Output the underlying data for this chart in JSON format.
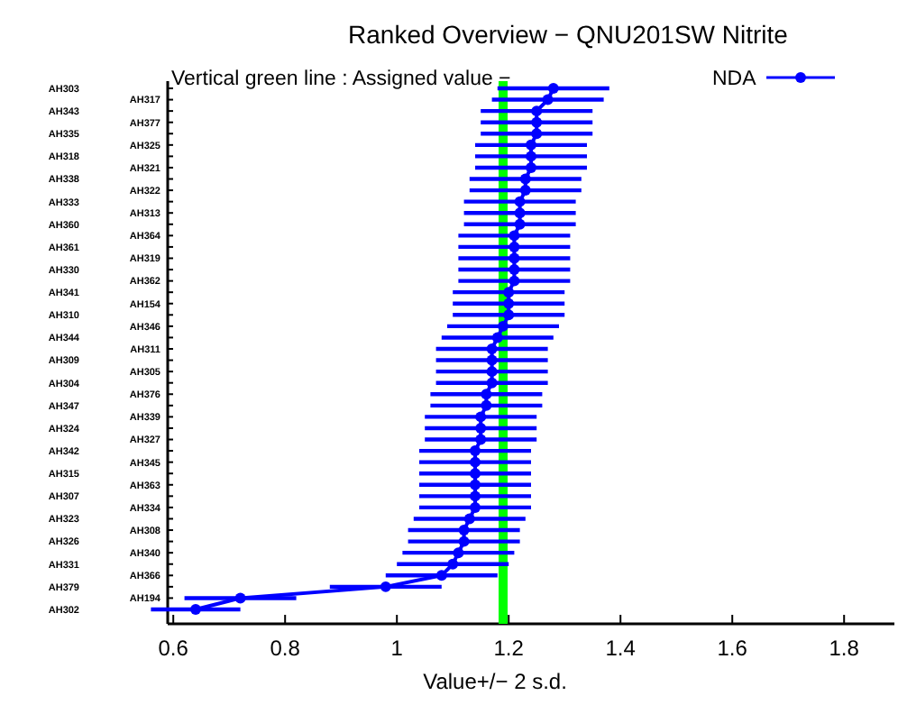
{
  "chart_data": {
    "type": "line",
    "orientation": "horizontal",
    "title": "Ranked Overview − QNU201SW  Nitrite",
    "xlabel": "Value+/− 2 s.d.",
    "annotations": [
      "Vertical green line : Assigned value −"
    ],
    "categories": [
      "AH303",
      "AH317",
      "AH343",
      "AH377",
      "AH335",
      "AH325",
      "AH318",
      "AH321",
      "AH338",
      "AH322",
      "AH333",
      "AH313",
      "AH360",
      "AH364",
      "AH361",
      "AH319",
      "AH330",
      "AH362",
      "AH341",
      "AH154",
      "AH310",
      "AH346",
      "AH344",
      "AH311",
      "AH309",
      "AH305",
      "AH304",
      "AH376",
      "AH347",
      "AH339",
      "AH324",
      "AH327",
      "AH342",
      "AH345",
      "AH315",
      "AH363",
      "AH307",
      "AH334",
      "AH323",
      "AH308",
      "AH326",
      "AH340",
      "AH331",
      "AH366",
      "AH379",
      "AH194",
      "AH302"
    ],
    "series": [
      {
        "name": "NDA",
        "color": "#0000ff",
        "values": [
          1.28,
          1.27,
          1.25,
          1.25,
          1.25,
          1.24,
          1.24,
          1.24,
          1.23,
          1.23,
          1.22,
          1.22,
          1.22,
          1.21,
          1.21,
          1.21,
          1.21,
          1.21,
          1.2,
          1.2,
          1.2,
          1.19,
          1.18,
          1.17,
          1.17,
          1.17,
          1.17,
          1.16,
          1.16,
          1.15,
          1.15,
          1.15,
          1.14,
          1.14,
          1.14,
          1.14,
          1.14,
          1.14,
          1.13,
          1.12,
          1.12,
          1.11,
          1.1,
          1.08,
          0.98,
          0.72,
          0.64
        ],
        "errors": [
          0.1,
          0.1,
          0.1,
          0.1,
          0.1,
          0.1,
          0.1,
          0.1,
          0.1,
          0.1,
          0.1,
          0.1,
          0.1,
          0.1,
          0.1,
          0.1,
          0.1,
          0.1,
          0.1,
          0.1,
          0.1,
          0.1,
          0.1,
          0.1,
          0.1,
          0.1,
          0.1,
          0.1,
          0.1,
          0.1,
          0.1,
          0.1,
          0.1,
          0.1,
          0.1,
          0.1,
          0.1,
          0.1,
          0.1,
          0.1,
          0.1,
          0.1,
          0.1,
          0.1,
          0.1,
          0.1,
          0.08
        ]
      }
    ],
    "xlim": [
      0.59,
      1.89
    ],
    "xticks": [
      0.6,
      0.8,
      1,
      1.2,
      1.4,
      1.6,
      1.8
    ],
    "ref_lines": [
      {
        "axis": "x",
        "value": 1.19,
        "color": "#00ff00"
      }
    ],
    "marker": "circle",
    "legend": "top right",
    "grid": false
  }
}
